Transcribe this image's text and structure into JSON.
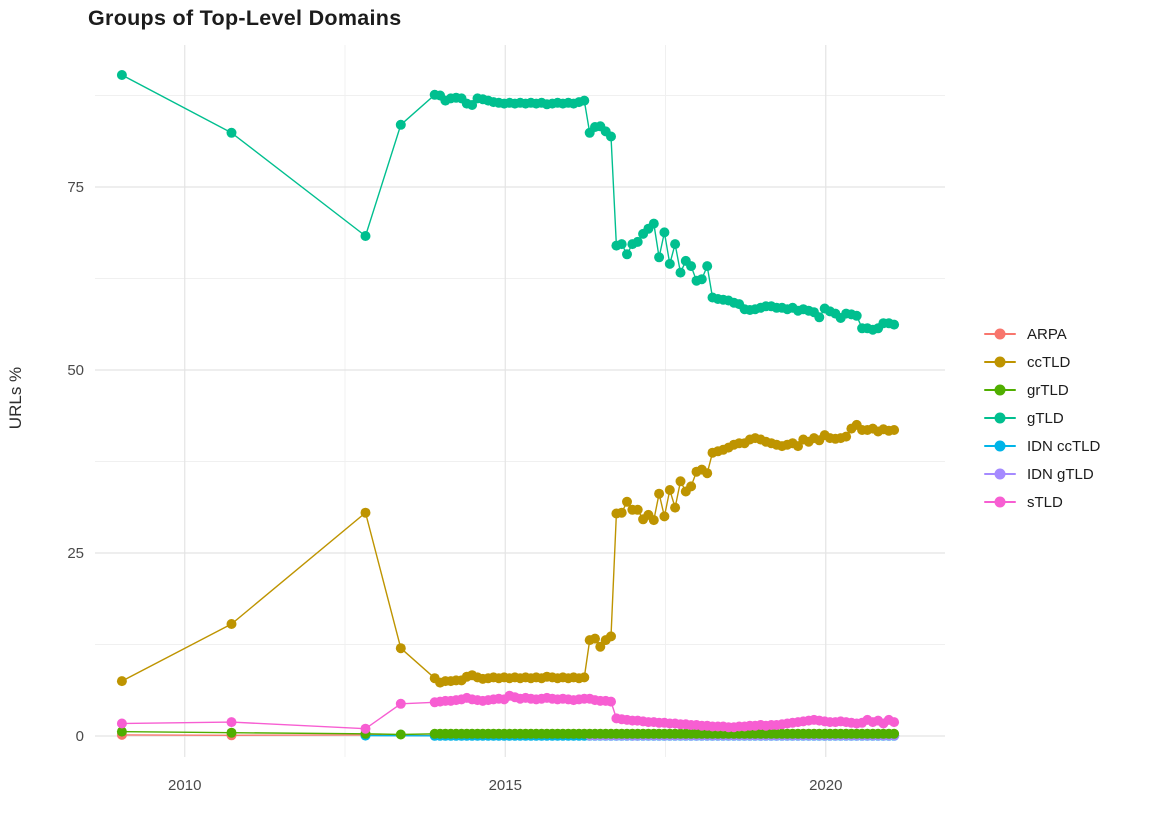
{
  "title": "Groups of Top-Level Domains",
  "chart_data": {
    "type": "line",
    "title": "Groups of Top-Level Domains",
    "xlabel": "",
    "ylabel": "URLs %",
    "x_ticks": [
      2010,
      2015,
      2020
    ],
    "x_minor_ticks": [
      2012.5,
      2017.5
    ],
    "y_ticks": [
      0,
      25,
      50,
      75
    ],
    "y_minor_ticks": [
      12.5,
      37.5,
      62.5,
      87.5
    ],
    "xlim": [
      2008.6,
      2021.86
    ],
    "ylim": [
      -2.87,
      94.4
    ],
    "grid": true,
    "legend_position": "right",
    "marker_radius_px": 5,
    "colors": {
      "major_grid": "#e4e4e4",
      "minor_grid": "#f0f0f0",
      "tick_text": "#4a4a4a",
      "title_text": "#1c1c1c"
    },
    "dense_t0": 2013.9,
    "dense_dt": 0.08333,
    "z_order": [
      "ARPA",
      "IDN ccTLD",
      "IDN gTLD",
      "grTLD",
      "sTLD",
      "ccTLD",
      "gTLD"
    ],
    "series": [
      {
        "name": "ARPA",
        "color": "#F8766D",
        "pre": [
          [
            2009.02,
            0.15
          ],
          [
            2010.73,
            0.1
          ],
          [
            2012.82,
            0.15
          ]
        ],
        "dense_const": 0.05,
        "dense_n": 87
      },
      {
        "name": "ccTLD",
        "color": "#BE9400",
        "pre": [
          [
            2009.02,
            7.5
          ],
          [
            2010.73,
            15.3
          ],
          [
            2012.82,
            30.5
          ],
          [
            2013.37,
            12.0
          ]
        ],
        "dense": [
          7.9,
          7.3,
          7.5,
          7.5,
          7.6,
          7.6,
          8.1,
          8.3,
          8.0,
          7.8,
          7.9,
          8.0,
          7.9,
          8.0,
          7.9,
          8.0,
          7.9,
          8.0,
          7.9,
          8.0,
          7.9,
          8.1,
          8.0,
          7.9,
          8.0,
          7.9,
          8.0,
          7.9,
          8.0,
          13.1,
          13.3,
          12.2,
          13.1,
          13.6,
          30.4,
          30.5,
          32.0,
          30.9,
          30.9,
          29.6,
          30.2,
          29.5,
          33.1,
          30.0,
          33.6,
          31.2,
          34.8,
          33.4,
          34.1,
          36.1,
          36.4,
          35.9,
          38.7,
          38.9,
          39.1,
          39.4,
          39.8,
          40.0,
          40.0,
          40.5,
          40.7,
          40.5,
          40.2,
          40.0,
          39.8,
          39.6,
          39.8,
          40.0,
          39.6,
          40.5,
          40.2,
          40.7,
          40.4,
          41.1,
          40.7,
          40.6,
          40.7,
          40.9,
          42.0,
          42.5,
          41.8,
          41.8,
          42.0,
          41.6,
          41.9,
          41.7,
          41.8
        ]
      },
      {
        "name": "grTLD",
        "color": "#50AE00",
        "pre": [
          [
            2009.02,
            0.6
          ],
          [
            2010.73,
            0.45
          ],
          [
            2012.82,
            0.3
          ],
          [
            2013.37,
            0.2
          ]
        ],
        "dense_const": 0.3,
        "dense_n": 87
      },
      {
        "name": "gTLD",
        "color": "#00BF8F",
        "pre": [
          [
            2009.02,
            90.3
          ],
          [
            2010.73,
            82.4
          ],
          [
            2012.82,
            68.3
          ],
          [
            2013.37,
            83.5
          ]
        ],
        "dense": [
          87.6,
          87.5,
          86.8,
          87.1,
          87.2,
          87.1,
          86.4,
          86.2,
          87.1,
          87.0,
          86.8,
          86.6,
          86.5,
          86.4,
          86.5,
          86.4,
          86.5,
          86.4,
          86.5,
          86.4,
          86.5,
          86.3,
          86.4,
          86.5,
          86.4,
          86.5,
          86.4,
          86.6,
          86.8,
          82.4,
          83.2,
          83.3,
          82.6,
          81.9,
          67.0,
          67.2,
          65.8,
          67.2,
          67.5,
          68.6,
          69.3,
          70.0,
          65.4,
          68.8,
          64.5,
          67.2,
          63.3,
          64.9,
          64.2,
          62.2,
          62.4,
          64.2,
          59.9,
          59.7,
          59.6,
          59.5,
          59.2,
          59.0,
          58.3,
          58.2,
          58.3,
          58.5,
          58.7,
          58.7,
          58.5,
          58.5,
          58.3,
          58.5,
          58.1,
          58.3,
          58.1,
          57.9,
          57.2,
          58.4,
          58.0,
          57.7,
          57.1,
          57.7,
          57.6,
          57.4,
          55.7,
          55.7,
          55.5,
          55.7,
          56.4,
          56.4,
          56.2
        ]
      },
      {
        "name": "IDN ccTLD",
        "color": "#00B4E8",
        "pre": [
          [
            2012.82,
            0.05
          ]
        ],
        "dense_const": 0.03,
        "dense_n": 87
      },
      {
        "name": "IDN gTLD",
        "color": "#A58AFF",
        "pre": [],
        "dense_const": 0.06,
        "dense_n": 58,
        "dense_t0": 2016.32
      },
      {
        "name": "sTLD",
        "color": "#F75ED2",
        "pre": [
          [
            2009.02,
            1.7
          ],
          [
            2010.73,
            1.9
          ],
          [
            2012.82,
            1.0
          ],
          [
            2013.37,
            4.4
          ]
        ],
        "dense": [
          4.6,
          4.7,
          4.8,
          4.8,
          4.9,
          5.0,
          5.2,
          5.0,
          4.9,
          4.8,
          4.9,
          5.0,
          5.1,
          5.0,
          5.5,
          5.3,
          5.1,
          5.2,
          5.1,
          5.0,
          5.1,
          5.2,
          5.1,
          5.0,
          5.1,
          5.0,
          4.9,
          5.0,
          5.1,
          5.1,
          4.9,
          4.8,
          4.8,
          4.7,
          2.4,
          2.3,
          2.2,
          2.1,
          2.1,
          2.0,
          1.9,
          1.9,
          1.8,
          1.8,
          1.7,
          1.7,
          1.6,
          1.6,
          1.5,
          1.5,
          1.4,
          1.4,
          1.3,
          1.3,
          1.3,
          1.2,
          1.2,
          1.3,
          1.3,
          1.4,
          1.4,
          1.5,
          1.4,
          1.5,
          1.5,
          1.6,
          1.7,
          1.8,
          1.9,
          2.0,
          2.1,
          2.2,
          2.1,
          2.0,
          1.9,
          1.9,
          2.0,
          1.9,
          1.8,
          1.7,
          1.8,
          2.2,
          1.9,
          2.1,
          1.7,
          2.2,
          1.9
        ]
      }
    ]
  }
}
